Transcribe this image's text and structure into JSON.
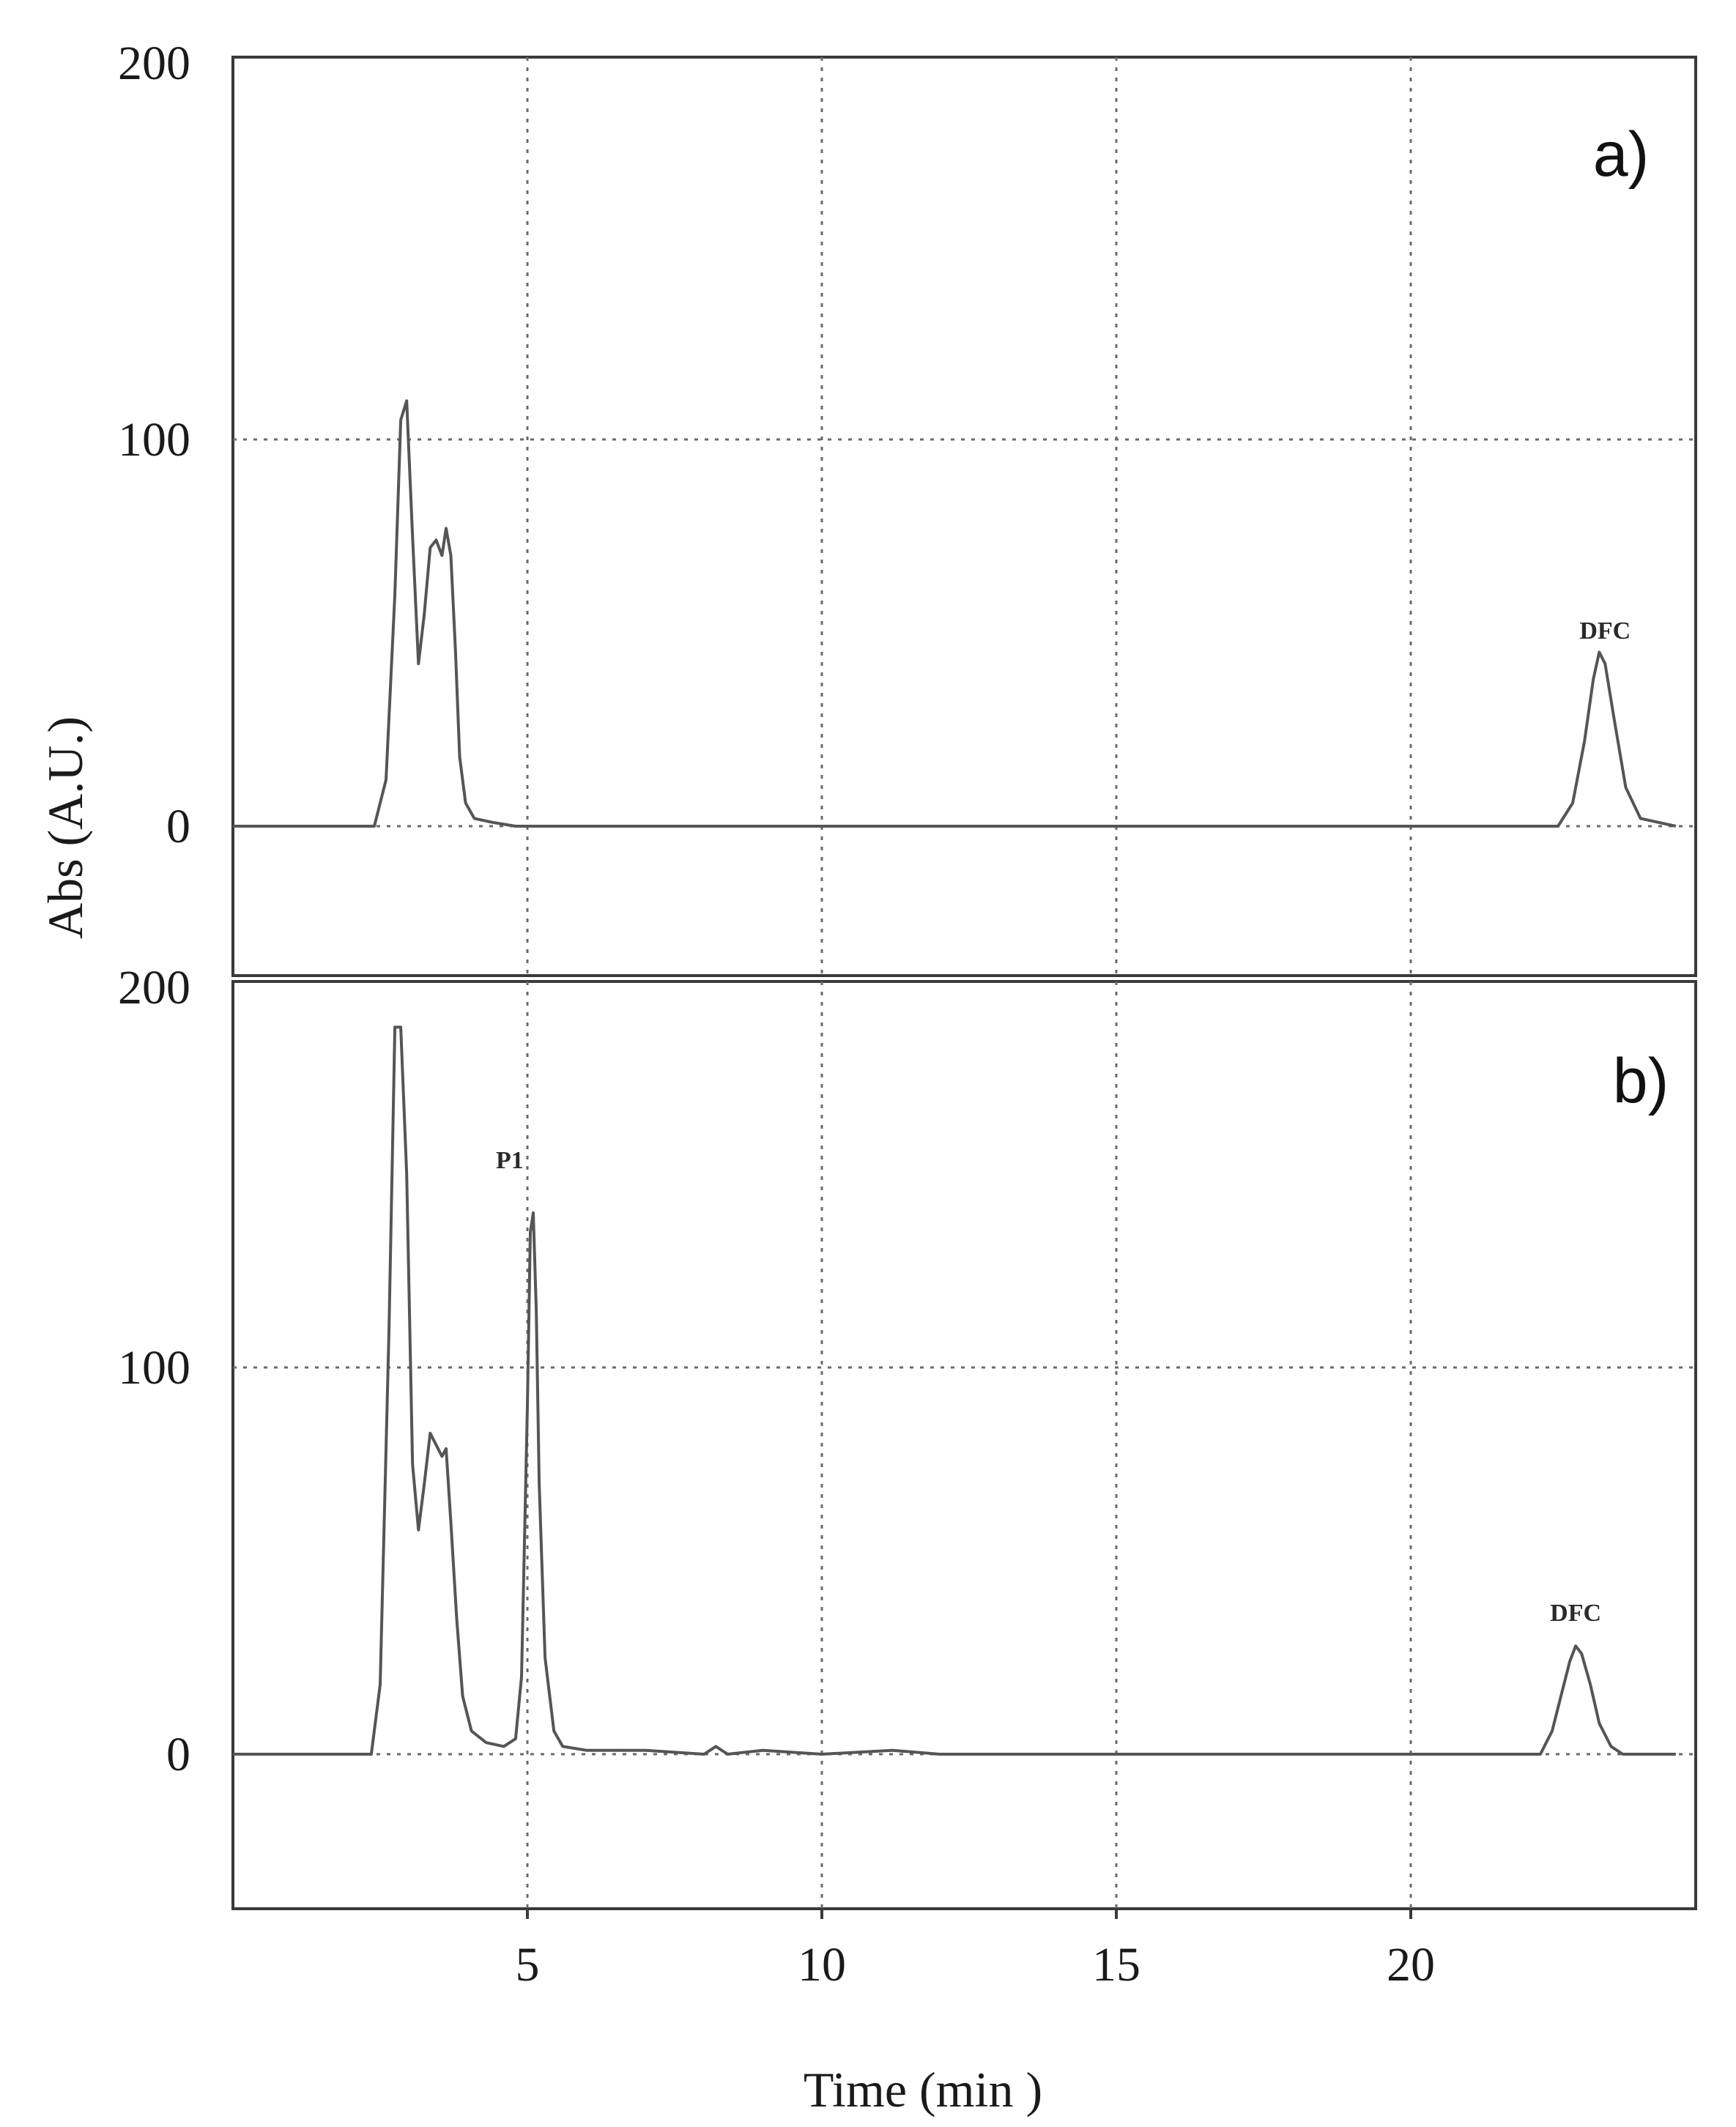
{
  "chart_data": [
    {
      "type": "line",
      "panel_label": "a)",
      "ylabel": "Abs (A.U.)",
      "xlabel": "",
      "xlim": [
        0,
        24.5
      ],
      "ylim": [
        -40,
        200
      ],
      "x_grid": [
        5,
        10,
        15,
        20
      ],
      "y_grid": [
        0,
        100
      ],
      "y_ticks": [
        {
          "value": 0,
          "label": "0"
        },
        {
          "value": 100,
          "label": "100"
        },
        {
          "value": 200,
          "label": "200"
        }
      ],
      "grid": true,
      "series": [
        {
          "x": [
            0,
            2.4,
            2.6,
            2.75,
            2.85,
            2.95,
            3.05,
            3.15,
            3.25,
            3.35,
            3.45,
            3.55,
            3.62,
            3.7,
            3.78,
            3.85,
            3.95,
            4.1,
            4.4,
            4.8,
            5,
            22.5,
            22.75,
            22.95,
            23.1,
            23.2,
            23.3,
            23.45,
            23.65,
            23.9,
            24.5
          ],
          "y": [
            0,
            0,
            12,
            60,
            105,
            110,
            75,
            42,
            55,
            72,
            74,
            70,
            77,
            70,
            45,
            18,
            6,
            2,
            1,
            0,
            0,
            0,
            6,
            22,
            38,
            45,
            42,
            28,
            10,
            2,
            0
          ]
        }
      ],
      "annotations": [
        {
          "text": "DFC",
          "x": 23.3,
          "y": 47
        }
      ]
    },
    {
      "type": "line",
      "panel_label": "b)",
      "xlabel": "Time (min )",
      "ylabel": "",
      "xlim": [
        0,
        24.5
      ],
      "ylim": [
        -40,
        200
      ],
      "x_grid": [
        5,
        10,
        15,
        20
      ],
      "y_grid": [
        0,
        100
      ],
      "x_ticks": [
        {
          "value": 5,
          "label": "5"
        },
        {
          "value": 10,
          "label": "10"
        },
        {
          "value": 15,
          "label": "15"
        },
        {
          "value": 20,
          "label": "20"
        }
      ],
      "y_ticks": [
        {
          "value": 0,
          "label": "0"
        },
        {
          "value": 100,
          "label": "100"
        },
        {
          "value": 200,
          "label": "200"
        }
      ],
      "grid": true,
      "series": [
        {
          "x": [
            0,
            2.35,
            2.5,
            2.65,
            2.75,
            2.85,
            2.95,
            3.05,
            3.15,
            3.25,
            3.35,
            3.45,
            3.55,
            3.62,
            3.7,
            3.8,
            3.9,
            4.05,
            4.3,
            4.6,
            4.8,
            4.9,
            5.0,
            5.05,
            5.1,
            5.15,
            5.2,
            5.3,
            5.45,
            5.6,
            6.0,
            7.0,
            8.0,
            8.2,
            8.4,
            9.0,
            10.0,
            11.2,
            12.0,
            13.0,
            22.2,
            22.4,
            22.55,
            22.7,
            22.8,
            22.9,
            23.05,
            23.2,
            23.4,
            23.6,
            24.5
          ],
          "y": [
            0,
            0,
            18,
            110,
            188,
            188,
            150,
            75,
            58,
            70,
            83,
            80,
            77,
            79,
            60,
            35,
            15,
            6,
            3,
            2,
            4,
            20,
            90,
            135,
            140,
            115,
            70,
            25,
            6,
            2,
            1,
            1,
            0,
            2,
            0,
            1,
            0,
            1,
            0,
            0,
            0,
            6,
            15,
            24,
            28,
            26,
            18,
            8,
            2,
            0,
            0
          ]
        }
      ],
      "annotations": [
        {
          "text": "P1",
          "x": 4.7,
          "y": 150
        },
        {
          "text": "DFC",
          "x": 22.8,
          "y": 33
        }
      ]
    }
  ]
}
